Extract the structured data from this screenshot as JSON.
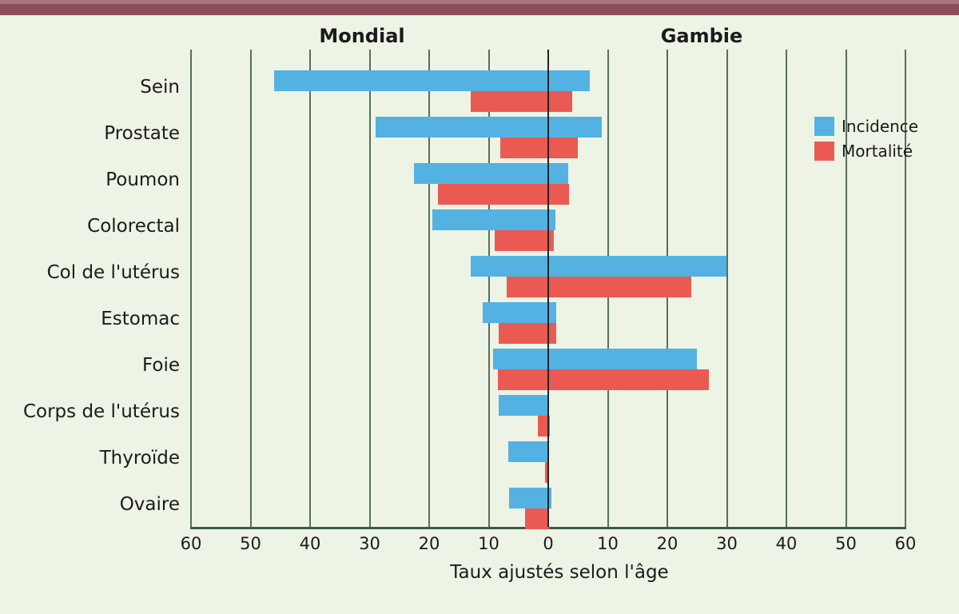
{
  "page": {
    "background_color": "#edf3e5",
    "top_band_color": "#8e4d5a",
    "top_band_highlight_color": "#aa737f"
  },
  "chart_data": {
    "type": "bar",
    "variant": "horizontal-diverging-back-to-back",
    "panel_titles": {
      "left": "Mondial",
      "right": "Gambie"
    },
    "xlabel": "Taux ajustés selon l'âge",
    "axis": {
      "max_each_side": 60,
      "tick_step": 10,
      "tick_labels": [
        "60",
        "50",
        "40",
        "30",
        "20",
        "10",
        "0",
        "10",
        "20",
        "30",
        "40",
        "50",
        "60"
      ]
    },
    "grid": true,
    "legend": {
      "position": "right",
      "items": [
        {
          "label": "Incidence",
          "color": "#53b2e2"
        },
        {
          "label": "Mortalité",
          "color": "#eb5a52"
        }
      ]
    },
    "categories": [
      "Sein",
      "Prostate",
      "Poumon",
      "Colorectal",
      "Col de l'utérus",
      "Estomac",
      "Foie",
      "Corps de l'utérus",
      "Thyroïde",
      "Ovaire"
    ],
    "series": [
      {
        "name": "Incidence",
        "panel": "Mondial",
        "side": "left",
        "color": "#53b2e2",
        "values": [
          46,
          29,
          22.5,
          19.5,
          13,
          11,
          9.2,
          8.3,
          6.7,
          6.6
        ]
      },
      {
        "name": "Incidence",
        "panel": "Gambie",
        "side": "right",
        "color": "#53b2e2",
        "values": [
          7,
          9,
          3.3,
          1.2,
          30,
          1.4,
          25,
          0,
          0,
          0.6
        ]
      },
      {
        "name": "Mortalité",
        "panel": "Mondial",
        "side": "left",
        "color": "#eb5a52",
        "values": [
          13,
          8,
          18.5,
          9,
          7,
          8.3,
          8.5,
          1.8,
          0.5,
          3.9
        ]
      },
      {
        "name": "Mortalité",
        "panel": "Gambie",
        "side": "right",
        "color": "#eb5a52",
        "values": [
          4,
          5,
          3.5,
          1,
          24,
          1.4,
          27,
          0.3,
          0.2,
          0.2
        ]
      }
    ]
  }
}
